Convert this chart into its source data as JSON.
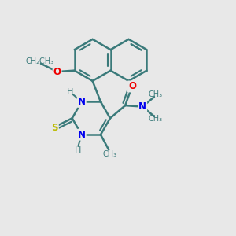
{
  "bg_color": "#e8e8e8",
  "bond_color": "#3a7a7a",
  "atom_colors": {
    "N": "#0000ee",
    "O": "#ee0000",
    "S": "#bbbb00",
    "C": "#3a7a7a",
    "H": "#3a7a7a"
  },
  "bond_width": 1.8,
  "font_size": 8.5,
  "xlim": [
    0,
    10
  ],
  "ylim": [
    0,
    10
  ]
}
